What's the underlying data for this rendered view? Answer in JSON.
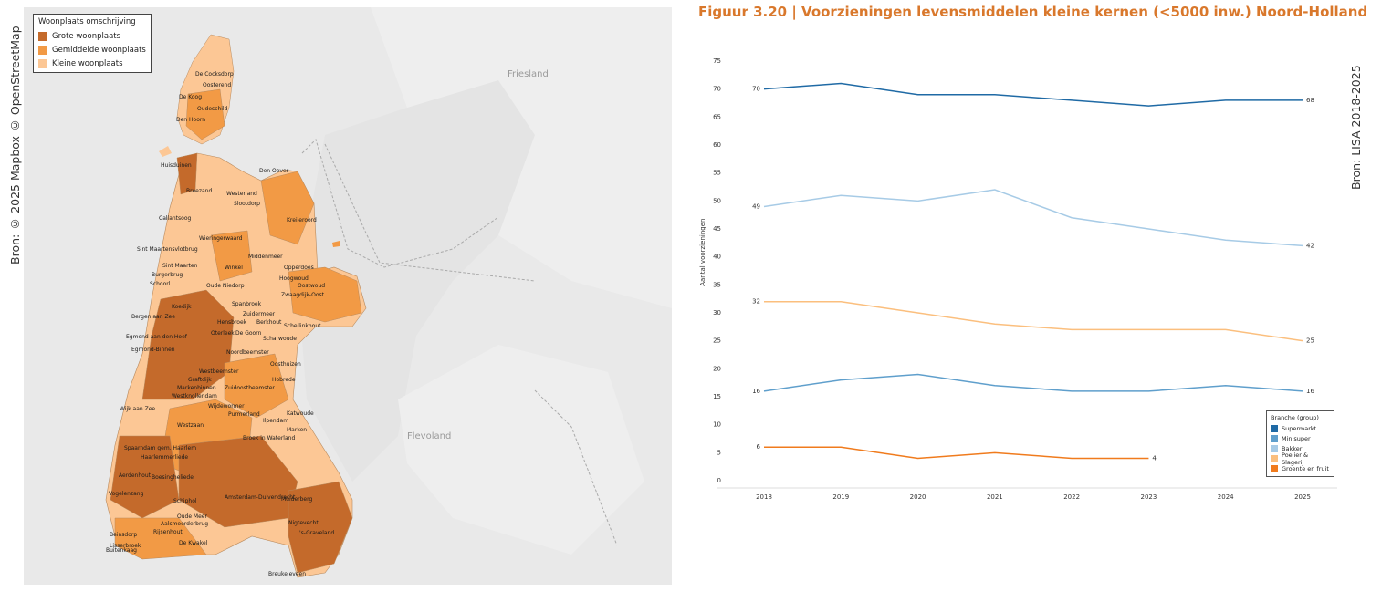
{
  "source_left": "Bron: © 2025 Mapbox © OpenStreetMap",
  "source_right": "Bron: LISA 2018-2025",
  "map": {
    "legend_title": "Woonplaats omschrijving",
    "legend_items": [
      {
        "label": "Grote woonplaats",
        "color": "#c46a2b"
      },
      {
        "label": "Gemiddelde woonplaats",
        "color": "#f29a45"
      },
      {
        "label": "Kleine woonplaats",
        "color": "#fcc795"
      }
    ],
    "regions": [
      {
        "label": "Friesland"
      },
      {
        "label": "Flevoland"
      }
    ],
    "places": [
      "De Cocksdorp",
      "Oosterend",
      "De Koog",
      "Oudeschild",
      "Den Hoorn",
      "Huisduinen",
      "Den Oever",
      "Breezand",
      "Westerland",
      "Slootdorp",
      "Kreileroord",
      "Callantsoog",
      "Sint Maartensvlotbrug",
      "Wieringerwaard",
      "Middenmeer",
      "Sint Maarten",
      "Burgerbrug",
      "Schoorl",
      "Winkel",
      "Opperdoes",
      "Oude Niedorp",
      "Hoogwoud",
      "Oostwoud",
      "Koedijk",
      "Spanbroek",
      "Zwaagdijk-Oost",
      "Bergen aan Zee",
      "Zuidermeer",
      "Hensbroek",
      "Berkhout",
      "Schellinkhout",
      "Egmond aan den Hoef",
      "Egmond-Binnen",
      "Oterleek",
      "De Goorn",
      "Scharwoude",
      "Noordbeemster",
      "Graftdijk",
      "Westbeemster",
      "Oosthuizen",
      "Hobrede",
      "Markenbinnen",
      "Westknollendam",
      "Zuidoostbeemster",
      "Wijdewormer",
      "Purmerland",
      "Katwoude",
      "Wijk aan Zee",
      "Westzaan",
      "Ilpendam",
      "Marken",
      "Spaarndam gem. Haarlem",
      "Broek in Waterland",
      "Haarlemmerliede",
      "Aerdenhout",
      "Boesingheliede",
      "Vogelenzang",
      "Amsterdam-Duivendrecht",
      "Muiderberg",
      "Schiphol",
      "Oude Meer",
      "Aalsmeerderbrug",
      "Nigtevecht",
      "Beinsdorp",
      "Lisserbroek",
      "Rijsenhout",
      "'s-Graveland",
      "Buitenkaag",
      "De Kwakel",
      "Breukeleveen"
    ]
  },
  "chart": {
    "title": "Figuur 3.20 | Voorzieningen levensmiddelen kleine kernen (<5000 inw.) Noord-Holland",
    "ylabel": "Aantal voorzieningen",
    "legend_title": "Branche (group)"
  },
  "chart_data": {
    "type": "line",
    "title": "Figuur 3.20 | Voorzieningen levensmiddelen kleine kernen (<5000 inw.) Noord-Holland",
    "xlabel": "",
    "ylabel": "Aantal voorzieningen",
    "x": [
      "2018",
      "2019",
      "2020",
      "2021",
      "2022",
      "2023",
      "2024",
      "2025"
    ],
    "ylim": [
      0,
      75
    ],
    "yticks": [
      0,
      5,
      10,
      15,
      20,
      25,
      30,
      35,
      40,
      45,
      50,
      55,
      60,
      65,
      70,
      75
    ],
    "grid": false,
    "legend_position": "bottom-right",
    "series": [
      {
        "name": "Supermarkt",
        "color": "#1f6aa5",
        "values": [
          70,
          71,
          69,
          69,
          68,
          67,
          68,
          68
        ],
        "labels": {
          "first": "70",
          "last": "68"
        }
      },
      {
        "name": "Minisuper",
        "color": "#5f9fcc",
        "values": [
          16,
          18,
          19,
          17,
          16,
          16,
          17,
          16
        ],
        "labels": {
          "first": "16",
          "last": "16"
        }
      },
      {
        "name": "Bakker",
        "color": "#a7cbe6",
        "values": [
          49,
          51,
          50,
          52,
          47,
          45,
          43,
          42
        ],
        "labels": {
          "first": "49",
          "last": "42"
        }
      },
      {
        "name": "Poelier & Slagerij",
        "color": "#fbbf7e",
        "values": [
          32,
          32,
          30,
          28,
          27,
          27,
          27,
          25
        ],
        "labels": {
          "first": "32",
          "last": "25"
        }
      },
      {
        "name": "Groente en fruit",
        "color": "#f07b1d",
        "values": [
          6,
          6,
          4,
          5,
          4,
          4,
          null,
          null
        ],
        "labels": {
          "first": "6",
          "last": "4"
        }
      }
    ]
  }
}
